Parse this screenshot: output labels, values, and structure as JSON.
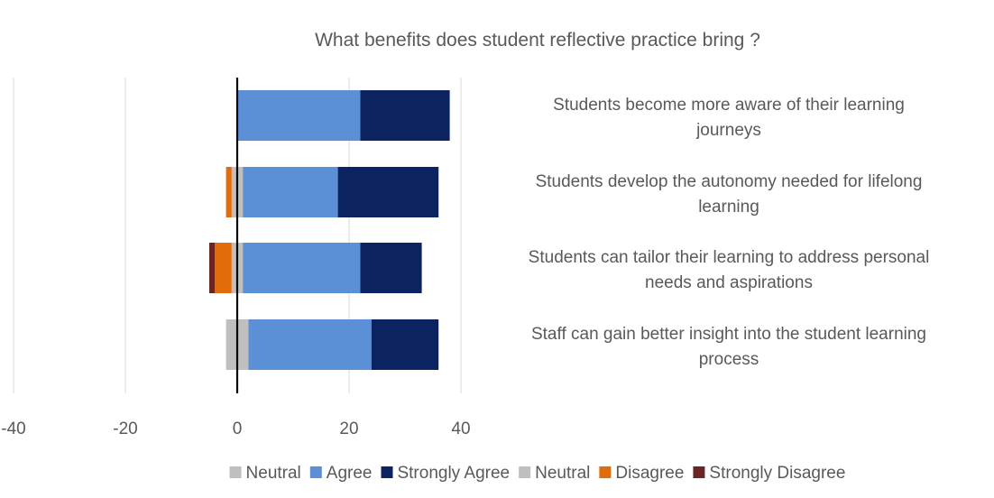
{
  "chart_data": {
    "type": "bar",
    "orientation": "horizontal",
    "stacking": "diverging",
    "title": "What benefits does student reflective practice bring ?",
    "categories": [
      "Students become more aware of their learning journeys",
      "Students develop the autonomy needed for lifelong learning",
      "Students can tailor their learning to address personal needs and aspirations",
      "Staff can gain better insight into the student learning process"
    ],
    "category_label_lines": [
      [
        "Students become more aware of their learning",
        "journeys"
      ],
      [
        "Students develop the autonomy needed for lifelong",
        "learning"
      ],
      [
        "Students can tailor their learning to address personal",
        "needs and aspirations"
      ],
      [
        "Staff can gain better insight into the student learning",
        "process"
      ]
    ],
    "series": [
      {
        "name": "Neutral",
        "side": "positive",
        "color": "#BFBFBF",
        "values": [
          0,
          1,
          1,
          2
        ]
      },
      {
        "name": "Agree",
        "side": "positive",
        "color": "#5B8FD6",
        "values": [
          22,
          17,
          21,
          22
        ]
      },
      {
        "name": "Strongly Agree",
        "side": "positive",
        "color": "#0B2461",
        "values": [
          16,
          18,
          11,
          12
        ]
      },
      {
        "name": "Neutral",
        "side": "negative",
        "color": "#BFBFBF",
        "values": [
          0,
          -1,
          -1,
          -2
        ]
      },
      {
        "name": "Disagree",
        "side": "negative",
        "color": "#E36C0A",
        "values": [
          0,
          -1,
          -3,
          0
        ]
      },
      {
        "name": "Strongly Disagree",
        "side": "negative",
        "color": "#6B2424",
        "values": [
          0,
          0,
          -1,
          0
        ]
      }
    ],
    "xlim": [
      -40,
      40
    ],
    "xticks": [
      -40,
      -20,
      0,
      20,
      40
    ],
    "grid": true,
    "legend_position": "bottom"
  }
}
